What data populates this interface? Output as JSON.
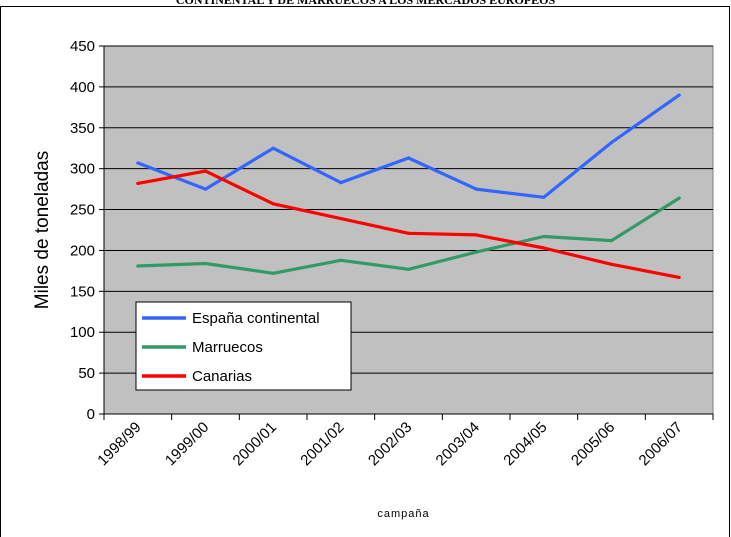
{
  "header": {
    "title": "CONTINENTAL Y DE MARRUECOS A LOS MERCADOS EUROPEOS"
  },
  "chart_data": {
    "type": "line",
    "title": "",
    "xlabel": "campaña",
    "ylabel": "Miles de toneladas",
    "ylim": [
      0,
      450
    ],
    "yticks": [
      0,
      50,
      100,
      150,
      200,
      250,
      300,
      350,
      400,
      450
    ],
    "grid": true,
    "legend_position": "bottom-left",
    "categories": [
      "1998/99",
      "1999/00",
      "2000/01",
      "2001/02",
      "2002/03",
      "2003/04",
      "2004/05",
      "2005/06",
      "2006/07"
    ],
    "series": [
      {
        "name": "España continental",
        "color": "#3366ff",
        "values": [
          307,
          275,
          325,
          283,
          313,
          275,
          265,
          332,
          390
        ]
      },
      {
        "name": "Marruecos",
        "color": "#339966",
        "values": [
          181,
          184,
          172,
          188,
          177,
          198,
          217,
          212,
          264
        ]
      },
      {
        "name": "Canarias",
        "color": "#ff0000",
        "values": [
          282,
          297,
          257,
          239,
          221,
          219,
          203,
          183,
          167
        ]
      }
    ],
    "plot_background": "#c0c0c0"
  }
}
